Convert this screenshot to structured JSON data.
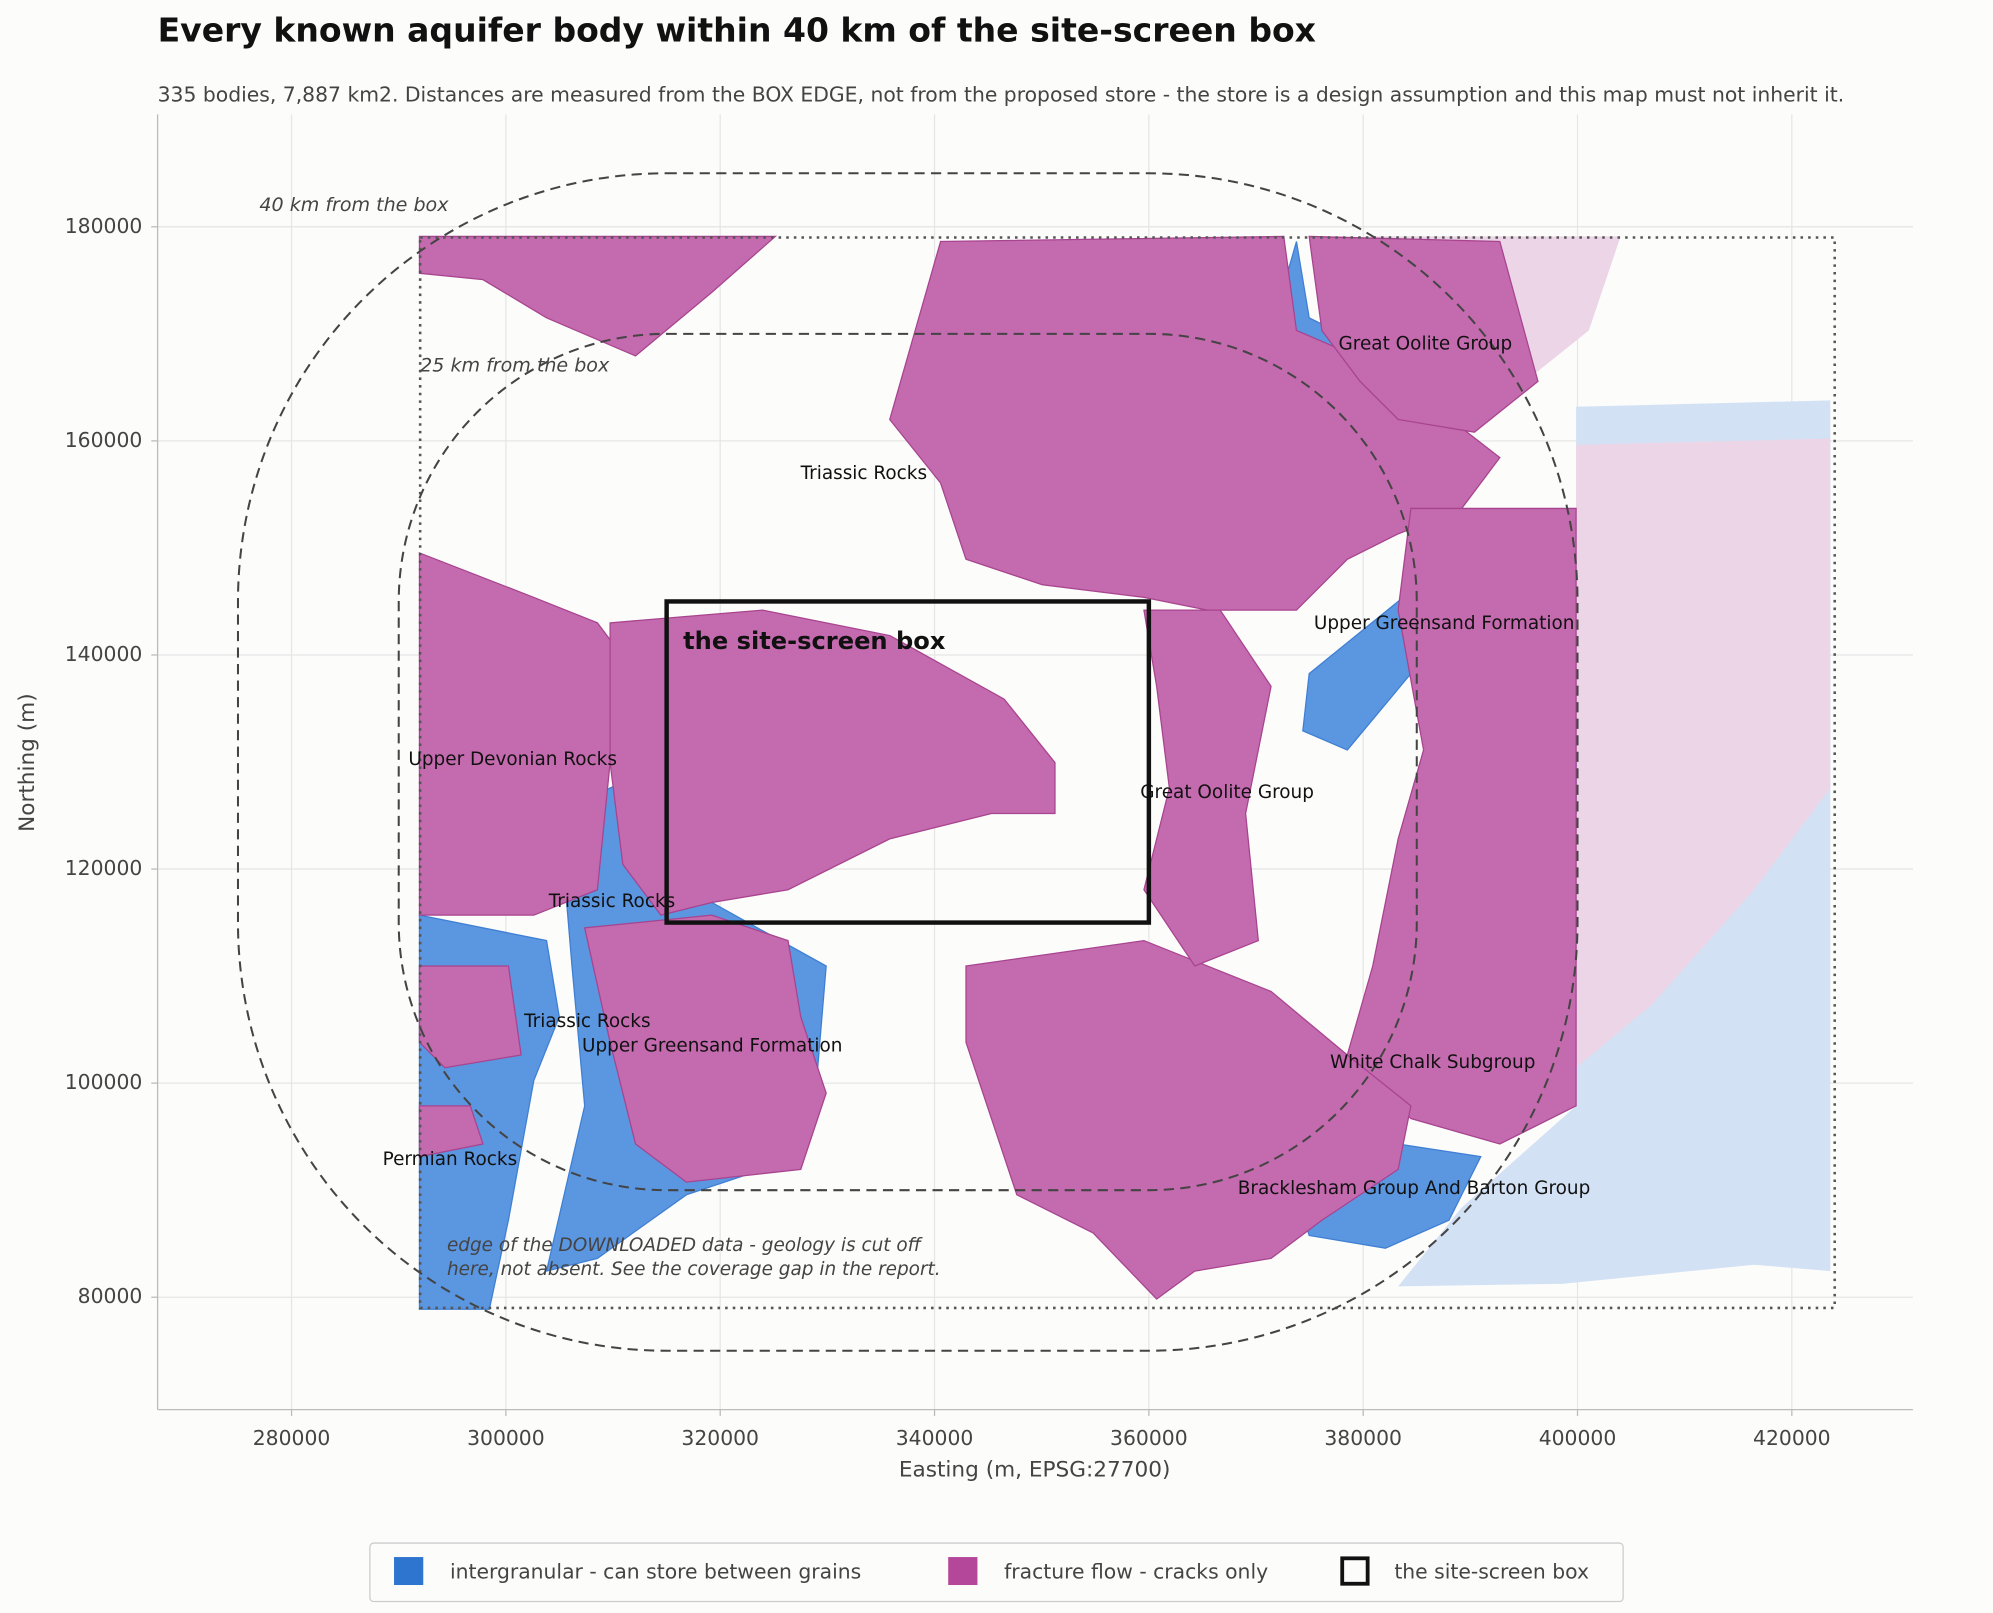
{
  "chart_data": {
    "type": "map",
    "title": "Every known aquifer body within 40 km of the site-screen box",
    "subtitle": "335 bodies, 7,887 km2. Distances are measured from the BOX EDGE, not from the proposed store - the store is a design assumption and this map must not inherit it.",
    "x_label": "Easting (m, EPSG:27700)",
    "y_label": "Northing (m)",
    "xlim": [
      267500,
      431300
    ],
    "ylim": [
      69500,
      190500
    ],
    "xticks": [
      280000,
      300000,
      320000,
      340000,
      360000,
      380000,
      400000,
      420000
    ],
    "yticks": [
      80000,
      100000,
      120000,
      140000,
      160000,
      180000
    ],
    "grid": true,
    "series": [
      {
        "name": "intergranular - can store between grains",
        "color": "#2e75d0"
      },
      {
        "name": "fracture flow - cracks only",
        "color": "#b5479a"
      }
    ],
    "site_box": {
      "label": "the site-screen box",
      "x": [
        315000,
        360000
      ],
      "y": [
        115000,
        145000
      ]
    },
    "data_extent": {
      "x": [
        292000,
        424000
      ],
      "y": [
        79000,
        179000
      ]
    },
    "buffers": [
      {
        "distance": 25000,
        "label": "25 km from the box",
        "x": 292000,
        "y": 167000
      },
      {
        "distance": 40000,
        "label": "40 km from the box",
        "x": 277000,
        "y": 182000
      }
    ],
    "edge_note": {
      "lines": [
        "edge of the DOWNLOADED data - geology is cut off",
        "here, not absent. See the coverage gap in the report."
      ],
      "x": 294500,
      "y": 84800
    },
    "labels": [
      {
        "text": "Great Oolite Group",
        "x": 377700,
        "y": 169000
      },
      {
        "text": "Triassic Rocks",
        "x": 327500,
        "y": 156900
      },
      {
        "text": "Upper Greensand Formation",
        "x": 375400,
        "y": 142900
      },
      {
        "text": "Upper Devonian Rocks",
        "x": 290900,
        "y": 130200
      },
      {
        "text": "Great Oolite Group",
        "x": 359200,
        "y": 127100
      },
      {
        "text": "Triassic Rocks",
        "x": 304000,
        "y": 116900
      },
      {
        "text": "Triassic Rocks",
        "x": 301700,
        "y": 105700
      },
      {
        "text": "Upper Greensand Formation",
        "x": 307100,
        "y": 103400
      },
      {
        "text": "White Chalk Subgroup",
        "x": 376900,
        "y": 101900
      },
      {
        "text": "Permian Rocks",
        "x": 288500,
        "y": 92800
      },
      {
        "text": "Bracklesham Group And Barton Group",
        "x": 368300,
        "y": 90100
      }
    ]
  }
}
